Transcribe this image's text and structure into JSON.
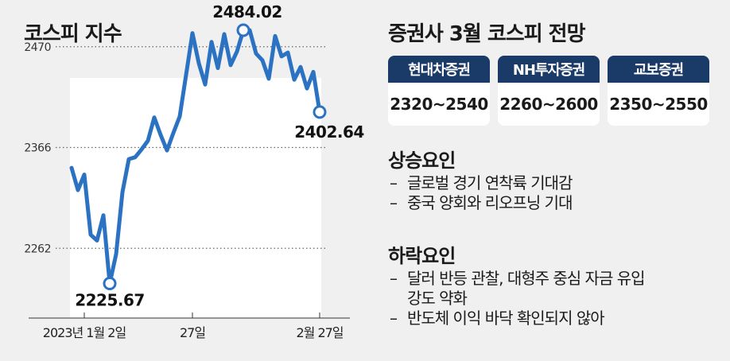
{
  "chart_data": {
    "type": "line",
    "title": "코스피 지수",
    "ylim": [
      2190,
      2510
    ],
    "yticks": [
      2262,
      2366,
      2470
    ],
    "xticks": [
      "2023년 1월 2일",
      "27일",
      "2월 27일"
    ],
    "grid": true,
    "line_color": "#2b73c2",
    "annotations": [
      {
        "label": "2225.67",
        "type": "min"
      },
      {
        "label": "2484.02",
        "type": "max"
      },
      {
        "label": "2402.64",
        "type": "last"
      }
    ],
    "series": [
      {
        "values": [
          2345,
          2322,
          2338,
          2276,
          2270,
          2296,
          2225.67,
          2256,
          2320,
          2354,
          2356,
          2364,
          2373,
          2397,
          2379,
          2363,
          2381,
          2398,
          2441,
          2484.02,
          2453,
          2431,
          2475,
          2448,
          2483,
          2451,
          2465,
          2487,
          2487,
          2463,
          2456,
          2437,
          2481,
          2460,
          2464,
          2436,
          2449,
          2427,
          2444,
          2402.64
        ]
      }
    ]
  },
  "panel": {
    "title": "증권사 3월 코스피 전망",
    "brokers": [
      {
        "name": "현대차증권",
        "range": "2320~2540"
      },
      {
        "name": "NH투자증권",
        "range": "2260~2600"
      },
      {
        "name": "교보증권",
        "range": "2350~2550"
      }
    ]
  },
  "factors": {
    "bullish": {
      "title": "상승요인",
      "items": [
        "글로벌 경기 연착륙 기대감",
        "중국 양회와 리오프닝 기대"
      ]
    },
    "bearish": {
      "title": "하락요인",
      "items": [
        "달러 반등 관찰, 대형주 중심 자금 유입 강도 약화",
        "반도체 이익 바닥 확인되지 않아"
      ]
    }
  },
  "dash": "–",
  "colors": {
    "line": "#2b73c2",
    "header": "#1a3a68",
    "background": "#f0f0f0"
  }
}
